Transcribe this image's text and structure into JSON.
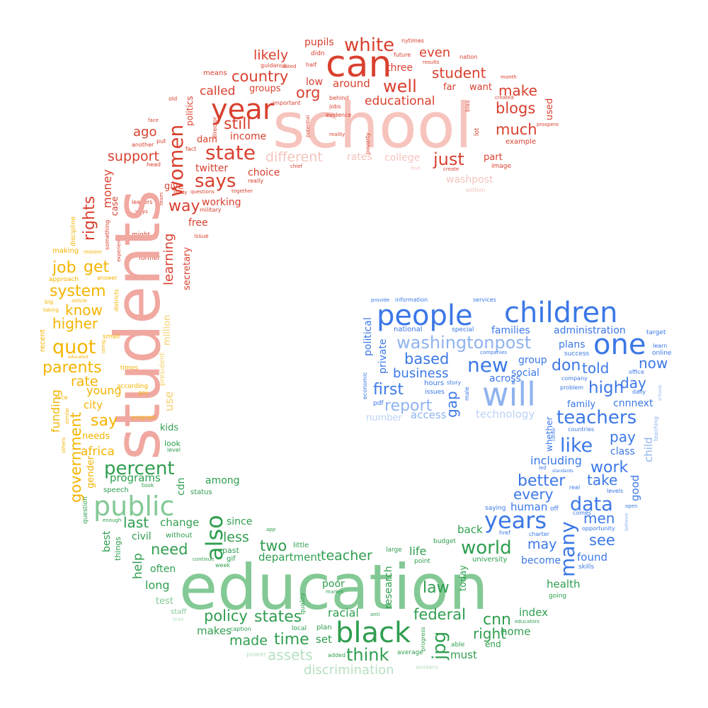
{
  "palette": {
    "red": "#d9402f",
    "red_light": "#f0a8a0",
    "red_pale": "#f6c4bd",
    "yellow": "#f4b400",
    "yellow_light": "#f8cf6c",
    "green": "#2f9e4f",
    "green_light": "#83c995",
    "green_pale": "#b7e0c1",
    "blue": "#3b78e7",
    "blue_light": "#8fb3ef",
    "blue_pale": "#bcd2f6"
  },
  "words": [
    {
      "text": "school",
      "c": "red_pale"
    },
    {
      "text": "can",
      "c": "red"
    },
    {
      "text": "year",
      "c": "red"
    },
    {
      "text": "white",
      "c": "red"
    },
    {
      "text": "likely",
      "c": "red"
    },
    {
      "text": "country",
      "c": "red"
    },
    {
      "text": "org",
      "c": "red"
    },
    {
      "text": "well",
      "c": "red"
    },
    {
      "text": "student",
      "c": "red"
    },
    {
      "text": "even",
      "c": "red"
    },
    {
      "text": "educational",
      "c": "red"
    },
    {
      "text": "make",
      "c": "red"
    },
    {
      "text": "blogs",
      "c": "red"
    },
    {
      "text": "much",
      "c": "red"
    },
    {
      "text": "state",
      "c": "red"
    },
    {
      "text": "says",
      "c": "red"
    },
    {
      "text": "still",
      "c": "red"
    },
    {
      "text": "just",
      "c": "red"
    },
    {
      "text": "called",
      "c": "red"
    },
    {
      "text": "different",
      "c": "red_pale"
    },
    {
      "text": "women",
      "c": "red"
    },
    {
      "text": "ago",
      "c": "red"
    },
    {
      "text": "support",
      "c": "red"
    },
    {
      "text": "way",
      "c": "red"
    },
    {
      "text": "rights",
      "c": "red"
    },
    {
      "text": "money",
      "c": "red"
    },
    {
      "text": "learning",
      "c": "red"
    },
    {
      "text": "secretary",
      "c": "red"
    },
    {
      "text": "income",
      "c": "red"
    },
    {
      "text": "twitter",
      "c": "red"
    },
    {
      "text": "choice",
      "c": "red"
    },
    {
      "text": "working",
      "c": "red"
    },
    {
      "text": "free",
      "c": "red"
    },
    {
      "text": "give",
      "c": "red"
    },
    {
      "text": "dam",
      "c": "red"
    },
    {
      "text": "groups",
      "c": "red"
    },
    {
      "text": "around",
      "c": "red"
    },
    {
      "text": "low",
      "c": "red"
    },
    {
      "text": "pupils",
      "c": "red"
    },
    {
      "text": "three",
      "c": "red"
    },
    {
      "text": "far",
      "c": "red"
    },
    {
      "text": "want",
      "c": "red"
    },
    {
      "text": "rates",
      "c": "red_pale"
    },
    {
      "text": "college",
      "c": "red_pale"
    },
    {
      "text": "washpost",
      "c": "red_pale"
    },
    {
      "text": "part",
      "c": "red"
    },
    {
      "text": "used",
      "c": "red"
    },
    {
      "text": "politics",
      "c": "red"
    },
    {
      "text": "means",
      "c": "red"
    },
    {
      "text": "didn",
      "c": "red"
    },
    {
      "text": "guidance",
      "c": "red"
    },
    {
      "text": "nytimes",
      "c": "red"
    },
    {
      "text": "future",
      "c": "red"
    },
    {
      "text": "nation",
      "c": "red"
    },
    {
      "text": "results",
      "c": "red"
    },
    {
      "text": "half",
      "c": "red"
    },
    {
      "text": "asked",
      "c": "red"
    },
    {
      "text": "important",
      "c": "red"
    },
    {
      "text": "director",
      "c": "red"
    },
    {
      "text": "jobs",
      "c": "red"
    },
    {
      "text": "behind",
      "c": "red"
    },
    {
      "text": "evidence",
      "c": "red"
    },
    {
      "text": "poverty",
      "c": "red"
    },
    {
      "text": "lot",
      "c": "red"
    },
    {
      "text": "bias",
      "c": "red"
    },
    {
      "text": "created",
      "c": "red"
    },
    {
      "text": "example",
      "c": "red"
    },
    {
      "text": "image",
      "c": "red"
    },
    {
      "text": "edition",
      "c": "red_pale"
    },
    {
      "text": "month",
      "c": "red"
    },
    {
      "text": "prospero",
      "c": "red"
    },
    {
      "text": "old",
      "c": "red"
    },
    {
      "text": "face",
      "c": "red"
    },
    {
      "text": "another",
      "c": "red"
    },
    {
      "text": "put",
      "c": "red"
    },
    {
      "text": "fact",
      "c": "red"
    },
    {
      "text": "head",
      "c": "red"
    },
    {
      "text": "leaders",
      "c": "red"
    },
    {
      "text": "ways",
      "c": "red"
    },
    {
      "text": "study",
      "c": "red"
    },
    {
      "text": "questions",
      "c": "red"
    },
    {
      "text": "together",
      "c": "red"
    },
    {
      "text": "really",
      "c": "red"
    },
    {
      "text": "military",
      "c": "red"
    },
    {
      "text": "issue",
      "c": "red"
    },
    {
      "text": "might",
      "c": "red"
    },
    {
      "text": "chief",
      "c": "red"
    },
    {
      "text": "find",
      "c": "red_pale"
    },
    {
      "text": "create",
      "c": "red"
    },
    {
      "text": "case",
      "c": "red"
    },
    {
      "text": "something",
      "c": "red"
    },
    {
      "text": "experience",
      "c": "red"
    },
    {
      "text": "former",
      "c": "red"
    },
    {
      "text": "team",
      "c": "red"
    },
    {
      "text": "potential",
      "c": "red"
    },
    {
      "text": "reality",
      "c": "red"
    },
    {
      "text": "students",
      "c": "red_light"
    },
    {
      "text": "get",
      "c": "yellow"
    },
    {
      "text": "job",
      "c": "yellow"
    },
    {
      "text": "system",
      "c": "yellow"
    },
    {
      "text": "know",
      "c": "yellow"
    },
    {
      "text": "higher",
      "c": "yellow"
    },
    {
      "text": "quot",
      "c": "yellow"
    },
    {
      "text": "parents",
      "c": "yellow"
    },
    {
      "text": "rate",
      "c": "yellow"
    },
    {
      "text": "young",
      "c": "yellow"
    },
    {
      "text": "city",
      "c": "yellow"
    },
    {
      "text": "say",
      "c": "yellow"
    },
    {
      "text": "government",
      "c": "yellow"
    },
    {
      "text": "funding",
      "c": "yellow"
    },
    {
      "text": "needs",
      "c": "yellow"
    },
    {
      "text": "africa",
      "c": "yellow"
    },
    {
      "text": "gender",
      "c": "yellow"
    },
    {
      "text": "use",
      "c": "yellow_light"
    },
    {
      "text": "million",
      "c": "yellow_light"
    },
    {
      "text": "president",
      "c": "yellow_light"
    },
    {
      "text": "making",
      "c": "yellow"
    },
    {
      "text": "approach",
      "c": "yellow"
    },
    {
      "text": "discipline",
      "c": "yellow"
    },
    {
      "text": "answer",
      "c": "yellow"
    },
    {
      "text": "article",
      "c": "yellow"
    },
    {
      "text": "big",
      "c": "yellow"
    },
    {
      "text": "taking",
      "c": "yellow"
    },
    {
      "text": "recent",
      "c": "yellow"
    },
    {
      "text": "educated",
      "c": "yellow"
    },
    {
      "text": "race",
      "c": "yellow"
    },
    {
      "text": "times",
      "c": "yellow"
    },
    {
      "text": "small",
      "c": "yellow"
    },
    {
      "text": "according",
      "c": "yellow"
    },
    {
      "text": "using",
      "c": "yellow"
    },
    {
      "text": "gov",
      "c": "yellow"
    },
    {
      "text": "program",
      "c": "yellow"
    },
    {
      "text": "similar",
      "c": "yellow"
    },
    {
      "text": "others",
      "c": "yellow"
    },
    {
      "text": "districts",
      "c": "yellow"
    },
    {
      "text": "resister",
      "c": "yellow"
    },
    {
      "text": "education",
      "c": "green_light"
    },
    {
      "text": "public",
      "c": "green_light"
    },
    {
      "text": "percent",
      "c": "green"
    },
    {
      "text": "also",
      "c": "green"
    },
    {
      "text": "kids",
      "c": "green"
    },
    {
      "text": "look",
      "c": "green"
    },
    {
      "text": "level",
      "c": "green"
    },
    {
      "text": "programs",
      "c": "green"
    },
    {
      "text": "cdn",
      "c": "green"
    },
    {
      "text": "among",
      "c": "green"
    },
    {
      "text": "status",
      "c": "green"
    },
    {
      "text": "took",
      "c": "green"
    },
    {
      "text": "speech",
      "c": "green"
    },
    {
      "text": "question",
      "c": "green"
    },
    {
      "text": "last",
      "c": "green"
    },
    {
      "text": "change",
      "c": "green"
    },
    {
      "text": "civil",
      "c": "green"
    },
    {
      "text": "without",
      "c": "green"
    },
    {
      "text": "best",
      "c": "green"
    },
    {
      "text": "things",
      "c": "green"
    },
    {
      "text": "enough",
      "c": "green"
    },
    {
      "text": "help",
      "c": "green"
    },
    {
      "text": "need",
      "c": "green"
    },
    {
      "text": "often",
      "c": "green"
    },
    {
      "text": "long",
      "c": "green"
    },
    {
      "text": "test",
      "c": "green_light"
    },
    {
      "text": "staff",
      "c": "green_light"
    },
    {
      "text": "lead",
      "c": "green_pale"
    },
    {
      "text": "since",
      "c": "green"
    },
    {
      "text": "less",
      "c": "green"
    },
    {
      "text": "past",
      "c": "green"
    },
    {
      "text": "gif",
      "c": "green"
    },
    {
      "text": "week",
      "c": "green"
    },
    {
      "text": "continue",
      "c": "green"
    },
    {
      "text": "two",
      "c": "green"
    },
    {
      "text": "department",
      "c": "green"
    },
    {
      "text": "little",
      "c": "green"
    },
    {
      "text": "app",
      "c": "green"
    },
    {
      "text": "teacher",
      "c": "green"
    },
    {
      "text": "large",
      "c": "green"
    },
    {
      "text": "life",
      "c": "green"
    },
    {
      "text": "point",
      "c": "green"
    },
    {
      "text": "world",
      "c": "green"
    },
    {
      "text": "budget",
      "c": "green"
    },
    {
      "text": "university",
      "c": "green"
    },
    {
      "text": "back",
      "c": "green"
    },
    {
      "text": "today",
      "c": "green"
    },
    {
      "text": "law",
      "c": "green"
    },
    {
      "text": "poor",
      "c": "green"
    },
    {
      "text": "market",
      "c": "green"
    },
    {
      "text": "quality",
      "c": "green"
    },
    {
      "text": "research",
      "c": "green"
    },
    {
      "text": "policy",
      "c": "green"
    },
    {
      "text": "states",
      "c": "green"
    },
    {
      "text": "racial",
      "c": "green"
    },
    {
      "text": "federal",
      "c": "green"
    },
    {
      "text": "cnn",
      "c": "green"
    },
    {
      "text": "index",
      "c": "green"
    },
    {
      "text": "black",
      "c": "green"
    },
    {
      "text": "jpg",
      "c": "green"
    },
    {
      "text": "right",
      "c": "green"
    },
    {
      "text": "home",
      "c": "green"
    },
    {
      "text": "made",
      "c": "green"
    },
    {
      "text": "time",
      "c": "green"
    },
    {
      "text": "set",
      "c": "green"
    },
    {
      "text": "plan",
      "c": "green"
    },
    {
      "text": "makes",
      "c": "green"
    },
    {
      "text": "caption",
      "c": "green"
    },
    {
      "text": "local",
      "c": "green"
    },
    {
      "text": "anti",
      "c": "green"
    },
    {
      "text": "think",
      "c": "green"
    },
    {
      "text": "must",
      "c": "green"
    },
    {
      "text": "end",
      "c": "green"
    },
    {
      "text": "able",
      "c": "green"
    },
    {
      "text": "average",
      "c": "green"
    },
    {
      "text": "progress",
      "c": "green"
    },
    {
      "text": "assets",
      "c": "green_pale"
    },
    {
      "text": "discrimination",
      "c": "green_pale"
    },
    {
      "text": "power",
      "c": "green_pale"
    },
    {
      "text": "added",
      "c": "green"
    },
    {
      "text": "workers",
      "c": "green_pale"
    },
    {
      "text": "health",
      "c": "green"
    },
    {
      "text": "going",
      "c": "green"
    },
    {
      "text": "educators",
      "c": "green"
    },
    {
      "text": "people",
      "c": "blue"
    },
    {
      "text": "children",
      "c": "blue"
    },
    {
      "text": "one",
      "c": "blue"
    },
    {
      "text": "will",
      "c": "blue_light"
    },
    {
      "text": "washingtonpost",
      "c": "blue_light"
    },
    {
      "text": "based",
      "c": "blue"
    },
    {
      "text": "business",
      "c": "blue"
    },
    {
      "text": "first",
      "c": "blue"
    },
    {
      "text": "report",
      "c": "blue_light"
    },
    {
      "text": "new",
      "c": "blue"
    },
    {
      "text": "gap",
      "c": "blue"
    },
    {
      "text": "access",
      "c": "blue_light"
    },
    {
      "text": "number",
      "c": "blue_pale"
    },
    {
      "text": "technology",
      "c": "blue_pale"
    },
    {
      "text": "teachers",
      "c": "blue"
    },
    {
      "text": "like",
      "c": "blue"
    },
    {
      "text": "high",
      "c": "blue"
    },
    {
      "text": "day",
      "c": "blue"
    },
    {
      "text": "now",
      "c": "blue"
    },
    {
      "text": "don",
      "c": "blue"
    },
    {
      "text": "told",
      "c": "blue"
    },
    {
      "text": "cnnnext",
      "c": "blue"
    },
    {
      "text": "families",
      "c": "blue"
    },
    {
      "text": "administration",
      "c": "blue"
    },
    {
      "text": "plans",
      "c": "blue"
    },
    {
      "text": "group",
      "c": "blue"
    },
    {
      "text": "social",
      "c": "blue"
    },
    {
      "text": "family",
      "c": "blue"
    },
    {
      "text": "pay",
      "c": "blue"
    },
    {
      "text": "class",
      "c": "blue"
    },
    {
      "text": "work",
      "c": "blue"
    },
    {
      "text": "take",
      "c": "blue"
    },
    {
      "text": "better",
      "c": "blue"
    },
    {
      "text": "every",
      "c": "blue"
    },
    {
      "text": "data",
      "c": "blue"
    },
    {
      "text": "men",
      "c": "blue"
    },
    {
      "text": "years",
      "c": "blue"
    },
    {
      "text": "many",
      "c": "blue"
    },
    {
      "text": "may",
      "c": "blue"
    },
    {
      "text": "see",
      "c": "blue"
    },
    {
      "text": "found",
      "c": "blue"
    },
    {
      "text": "become",
      "c": "blue"
    },
    {
      "text": "human",
      "c": "blue"
    },
    {
      "text": "including",
      "c": "blue"
    },
    {
      "text": "whether",
      "c": "blue"
    },
    {
      "text": "child",
      "c": "blue_light"
    },
    {
      "text": "good",
      "c": "blue"
    },
    {
      "text": "political",
      "c": "blue"
    },
    {
      "text": "private",
      "c": "blue"
    },
    {
      "text": "economic",
      "c": "blue"
    },
    {
      "text": "pdf",
      "c": "blue"
    },
    {
      "text": "national",
      "c": "blue"
    },
    {
      "text": "special",
      "c": "blue"
    },
    {
      "text": "hours",
      "c": "blue"
    },
    {
      "text": "issues",
      "c": "blue"
    },
    {
      "text": "story",
      "c": "blue"
    },
    {
      "text": "male",
      "c": "blue"
    },
    {
      "text": "across",
      "c": "blue"
    },
    {
      "text": "companies",
      "c": "blue"
    },
    {
      "text": "success",
      "c": "blue"
    },
    {
      "text": "problem",
      "c": "blue"
    },
    {
      "text": "company",
      "c": "blue"
    },
    {
      "text": "daily",
      "c": "blue"
    },
    {
      "text": "office",
      "c": "blue"
    },
    {
      "text": "online",
      "c": "blue"
    },
    {
      "text": "learn",
      "c": "blue"
    },
    {
      "text": "target",
      "c": "blue"
    },
    {
      "text": "countries",
      "c": "blue"
    },
    {
      "text": "teaching",
      "c": "blue_light"
    },
    {
      "text": "levels",
      "c": "blue"
    },
    {
      "text": "open",
      "c": "blue"
    },
    {
      "text": "believe",
      "c": "blue_light"
    },
    {
      "text": "real",
      "c": "blue"
    },
    {
      "text": "comes",
      "c": "blue"
    },
    {
      "text": "opportunity",
      "c": "blue"
    },
    {
      "text": "skills",
      "c": "blue"
    },
    {
      "text": "saying",
      "c": "blue"
    },
    {
      "text": "href",
      "c": "blue"
    },
    {
      "text": "charter",
      "c": "blue"
    },
    {
      "text": "off",
      "c": "blue"
    },
    {
      "text": "led",
      "c": "blue"
    },
    {
      "text": "standards",
      "c": "blue"
    },
    {
      "text": "information",
      "c": "blue"
    },
    {
      "text": "provide",
      "c": "blue"
    },
    {
      "text": "services",
      "c": "blue"
    },
    {
      "text": "center",
      "c": "blue"
    },
    {
      "text": "schools",
      "c": "blue_light"
    }
  ]
}
